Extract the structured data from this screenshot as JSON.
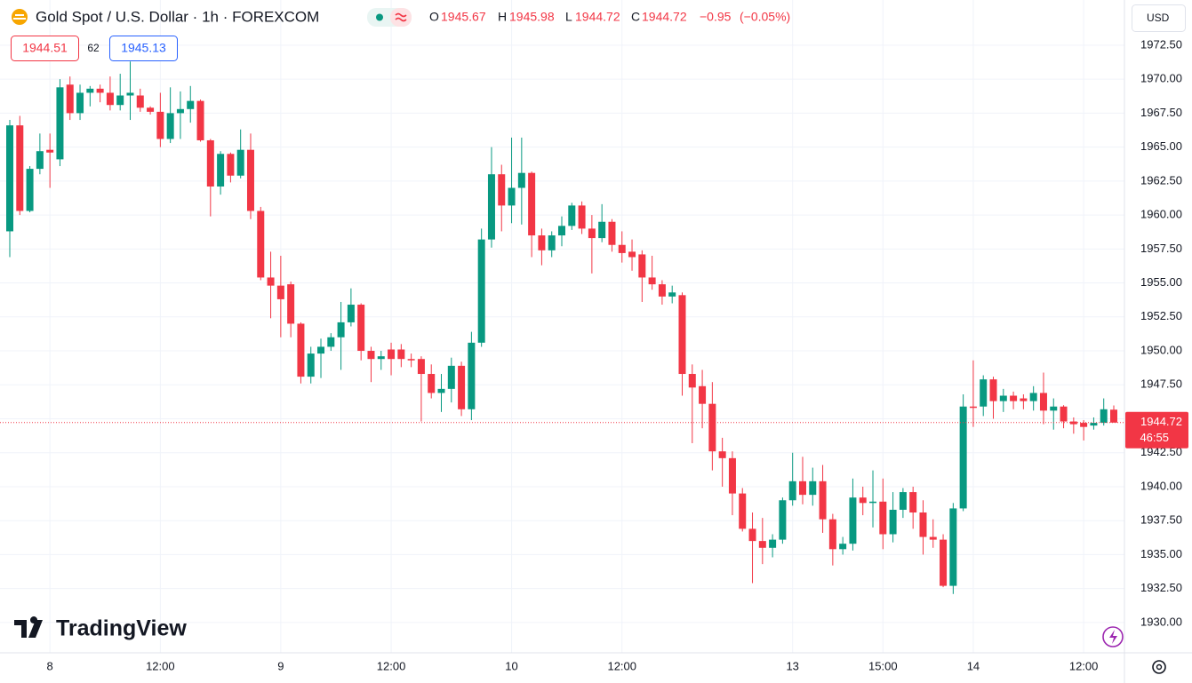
{
  "chart_data": {
    "type": "candlestick",
    "title": "Gold Spot / U.S. Dollar · 1h · FOREXCOM",
    "header": {
      "o_label": "O",
      "open": 1945.67,
      "h_label": "H",
      "high": 1945.98,
      "l_label": "L",
      "low": 1944.72,
      "c_label": "C",
      "close": 1944.72,
      "change": {
        "value": -0.95,
        "label": "−0.95"
      },
      "change_pct": {
        "value": -0.05,
        "label": "(−0.05%)"
      }
    },
    "sell_price": 1944.51,
    "spread": 62,
    "buy_price": 1945.13,
    "currency": "USD",
    "countdown": "46:55",
    "brand": "TradingView",
    "categories": [
      null,
      null,
      null,
      null,
      "8",
      null,
      null,
      null,
      null,
      null,
      null,
      null,
      null,
      null,
      null,
      "12:00",
      null,
      null,
      null,
      null,
      null,
      null,
      null,
      null,
      null,
      null,
      null,
      "9",
      null,
      null,
      null,
      null,
      null,
      null,
      null,
      null,
      null,
      null,
      "12:00",
      null,
      null,
      null,
      null,
      null,
      null,
      null,
      null,
      null,
      null,
      null,
      "10",
      null,
      null,
      null,
      null,
      null,
      null,
      null,
      null,
      null,
      null,
      "12:00",
      null,
      null,
      null,
      null,
      null,
      null,
      null,
      null,
      null,
      null,
      null,
      null,
      null,
      null,
      null,
      null,
      "13",
      null,
      null,
      null,
      null,
      null,
      null,
      null,
      null,
      "15:00",
      null,
      null,
      null,
      null,
      null,
      null,
      null,
      null,
      "14",
      null,
      null,
      null,
      null,
      null,
      null,
      null,
      null,
      null,
      null,
      "12:00",
      null,
      null,
      null
    ],
    "open": [
      1958.8,
      1966.6,
      1960.3,
      1963.4,
      1964.8,
      1964.1,
      1969.6,
      1967.5,
      1969.0,
      1969.3,
      1969.0,
      1968.1,
      1968.8,
      1968.8,
      1967.9,
      1967.6,
      1965.6,
      1967.5,
      1967.8,
      1968.4,
      1965.5,
      1962.1,
      1964.5,
      1962.9,
      1964.8,
      1960.3,
      1955.4,
      1954.8,
      1954.9,
      1952.0,
      1948.1,
      1949.8,
      1950.3,
      1951.0,
      1952.1,
      1953.4,
      1950.0,
      1949.4,
      1950.1,
      1950.1,
      1949.4,
      1949.4,
      1948.3,
      1946.9,
      1947.2,
      1948.9,
      1945.7,
      1950.6,
      1958.2,
      1963.0,
      1960.7,
      1962.0,
      1963.1,
      1958.5,
      1957.4,
      1958.5,
      1959.2,
      1960.7,
      1959.0,
      1958.3,
      1959.5,
      1957.8,
      1957.3,
      1957.1,
      1955.4,
      1954.9,
      1954.0,
      1954.1,
      1948.3,
      1947.4,
      1946.1,
      1942.6,
      1942.1,
      1939.5,
      1936.9,
      1936.0,
      1935.5,
      1936.1,
      1939.0,
      1940.4,
      1939.4,
      1940.4,
      1937.6,
      1935.4,
      1935.8,
      1939.2,
      1938.8,
      1938.9,
      1936.5,
      1938.3,
      1939.6,
      1938.1,
      1936.3,
      1936.1,
      1932.7,
      1938.4,
      1945.9,
      1945.9,
      1947.9,
      1946.3,
      1946.7,
      1946.5,
      1946.3,
      1946.9,
      1945.6,
      1945.9,
      1944.8,
      1944.7,
      1944.5,
      1944.7,
      1945.67
    ],
    "high": [
      1967.0,
      1967.3,
      1963.6,
      1966.0,
      1966.0,
      1970.0,
      1970.2,
      1969.6,
      1969.5,
      1969.6,
      1970.2,
      1970.4,
      1971.3,
      1969.3,
      1968.0,
      1969.0,
      1969.4,
      1969.1,
      1969.5,
      1968.5,
      1965.6,
      1964.7,
      1964.6,
      1966.3,
      1966.0,
      1960.6,
      1957.3,
      1957.0,
      1955.1,
      1952.1,
      1950.3,
      1950.9,
      1951.3,
      1953.6,
      1954.6,
      1953.5,
      1950.3,
      1950.0,
      1950.6,
      1950.5,
      1949.8,
      1949.6,
      1949.0,
      1948.3,
      1949.5,
      1949.2,
      1951.4,
      1959.0,
      1965.0,
      1963.7,
      1965.7,
      1965.7,
      1963.2,
      1959.0,
      1958.8,
      1959.9,
      1960.9,
      1961.0,
      1960.0,
      1960.8,
      1959.7,
      1958.8,
      1958.2,
      1957.4,
      1957.0,
      1955.2,
      1954.8,
      1954.3,
      1949.0,
      1948.6,
      1947.7,
      1943.6,
      1942.6,
      1939.9,
      1938.1,
      1937.7,
      1936.5,
      1939.2,
      1942.5,
      1942.2,
      1941.4,
      1941.6,
      1938.0,
      1936.3,
      1940.6,
      1940.0,
      1941.2,
      1940.6,
      1939.6,
      1939.9,
      1940.0,
      1939.0,
      1937.6,
      1936.5,
      1938.8,
      1946.8,
      1949.3,
      1948.2,
      1948.1,
      1947.2,
      1947.0,
      1946.8,
      1947.4,
      1948.4,
      1946.5,
      1946.0,
      1945.1,
      1944.9,
      1945.1,
      1946.5,
      1945.98
    ],
    "low": [
      1956.9,
      1960.0,
      1960.2,
      1963.0,
      1962.0,
      1963.6,
      1967.0,
      1967.0,
      1968.0,
      1968.3,
      1967.7,
      1967.7,
      1967.0,
      1967.6,
      1967.4,
      1965.0,
      1965.3,
      1965.6,
      1966.8,
      1965.4,
      1959.9,
      1961.5,
      1962.4,
      1962.7,
      1959.7,
      1955.2,
      1952.4,
      1951.0,
      1951.0,
      1947.6,
      1947.6,
      1948.0,
      1950.0,
      1948.6,
      1951.8,
      1949.3,
      1947.7,
      1948.6,
      1948.2,
      1948.8,
      1948.8,
      1944.8,
      1946.5,
      1945.5,
      1946.2,
      1945.2,
      1944.9,
      1950.3,
      1957.6,
      1958.8,
      1959.4,
      1959.3,
      1956.9,
      1956.3,
      1956.9,
      1957.7,
      1958.9,
      1958.6,
      1955.7,
      1958.0,
      1957.3,
      1956.5,
      1955.9,
      1953.6,
      1954.5,
      1953.4,
      1953.5,
      1946.7,
      1943.2,
      1944.3,
      1941.2,
      1940.0,
      1937.9,
      1936.7,
      1932.9,
      1934.3,
      1934.8,
      1935.8,
      1938.6,
      1938.7,
      1938.6,
      1936.6,
      1934.2,
      1935.0,
      1935.3,
      1937.9,
      1937.0,
      1935.4,
      1935.9,
      1937.7,
      1936.9,
      1935.0,
      1935.5,
      1932.6,
      1932.1,
      1938.2,
      1944.4,
      1945.2,
      1945.0,
      1945.5,
      1945.7,
      1945.7,
      1945.6,
      1944.6,
      1944.2,
      1944.3,
      1943.9,
      1943.4,
      1944.2,
      1944.5,
      1944.72
    ],
    "close": [
      1966.6,
      1960.3,
      1963.4,
      1964.7,
      1964.6,
      1969.4,
      1967.5,
      1969.0,
      1969.3,
      1969.0,
      1968.1,
      1968.8,
      1969.0,
      1967.9,
      1967.6,
      1965.6,
      1967.5,
      1967.8,
      1968.4,
      1965.5,
      1962.1,
      1964.5,
      1962.9,
      1964.8,
      1960.3,
      1955.4,
      1954.8,
      1953.8,
      1952.0,
      1948.1,
      1949.8,
      1950.3,
      1951.0,
      1952.1,
      1953.4,
      1950.0,
      1949.4,
      1949.6,
      1949.4,
      1949.4,
      1949.3,
      1948.3,
      1946.9,
      1947.2,
      1948.9,
      1945.7,
      1950.6,
      1958.2,
      1963.0,
      1960.7,
      1962.0,
      1963.1,
      1958.5,
      1957.4,
      1958.5,
      1959.2,
      1960.7,
      1959.0,
      1958.3,
      1959.5,
      1957.8,
      1957.2,
      1956.9,
      1955.4,
      1954.9,
      1954.0,
      1954.3,
      1948.3,
      1947.3,
      1946.1,
      1942.6,
      1942.1,
      1939.5,
      1936.9,
      1936.0,
      1935.5,
      1936.1,
      1939.0,
      1940.4,
      1939.4,
      1940.4,
      1937.6,
      1935.4,
      1935.8,
      1939.2,
      1938.8,
      1938.9,
      1936.5,
      1938.3,
      1939.6,
      1938.1,
      1936.3,
      1936.1,
      1932.7,
      1938.4,
      1945.9,
      1945.8,
      1947.9,
      1946.3,
      1946.7,
      1946.3,
      1946.3,
      1946.9,
      1945.6,
      1945.9,
      1944.8,
      1944.6,
      1944.4,
      1944.7,
      1945.7,
      1944.72
    ],
    "up_color": "#089981",
    "down_color": "#f23645",
    "ylim": [
      1927.77,
      1975.83
    ],
    "yticks": [
      {
        "value": 1930,
        "label": "1930.00"
      },
      {
        "value": 1932.5,
        "label": "1932.50"
      },
      {
        "value": 1935,
        "label": "1935.00"
      },
      {
        "value": 1937.5,
        "label": "1937.50"
      },
      {
        "value": 1940,
        "label": "1940.00"
      },
      {
        "value": 1942.5,
        "label": "1942.50"
      },
      {
        "value": 1945,
        "label": "1945.00"
      },
      {
        "value": 1947.5,
        "label": "1947.50"
      },
      {
        "value": 1950,
        "label": "1950.00"
      },
      {
        "value": 1952.5,
        "label": "1952.50"
      },
      {
        "value": 1955,
        "label": "1955.00"
      },
      {
        "value": 1957.5,
        "label": "1957.50"
      },
      {
        "value": 1960,
        "label": "1960.00"
      },
      {
        "value": 1962.5,
        "label": "1962.50"
      },
      {
        "value": 1965,
        "label": "1965.00"
      },
      {
        "value": 1967.5,
        "label": "1967.50"
      },
      {
        "value": 1970,
        "label": "1970.00"
      },
      {
        "value": 1972.5,
        "label": "1972.50"
      }
    ],
    "grid": true
  }
}
